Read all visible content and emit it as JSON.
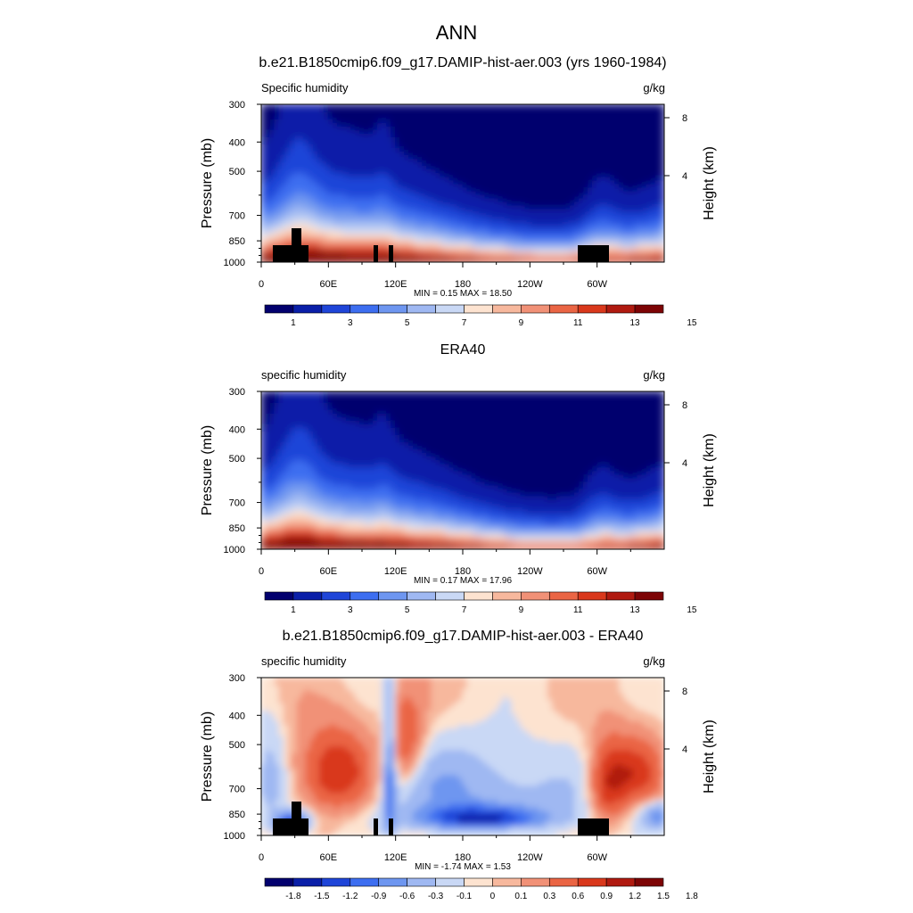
{
  "main_title": "ANN",
  "colormaps": {
    "abs": [
      "#02006e",
      "#0a1fa8",
      "#1f45d8",
      "#3d6ef0",
      "#6e96f0",
      "#9fb8f2",
      "#c9d8f5",
      "#fde3d0",
      "#f7b89d",
      "#f19177",
      "#ea6544",
      "#d9381c",
      "#b01a10",
      "#7d0405"
    ],
    "diff": [
      "#02006e",
      "#0a1fa8",
      "#1f45d8",
      "#3d6ef0",
      "#6e96f0",
      "#9fb8f2",
      "#c9d8f5",
      "#fde3d0",
      "#f7b89d",
      "#f19177",
      "#ea6544",
      "#d9381c",
      "#b01a10",
      "#7d0405"
    ]
  },
  "panels": [
    {
      "title": "b.e21.B1850cmip6.f09_g17.DAMIP-hist-aer.003 (yrs 1960-1984)",
      "left_label": "Specific humidity",
      "right_label": "g/kg",
      "y_label": "Pressure (mb)",
      "right_axis_label": "Height (km)",
      "stats": "MIN =   0.15  MAX =  18.50",
      "colorbar_labels": [
        "1",
        "3",
        "5",
        "7",
        "9",
        "11",
        "13",
        "15"
      ]
    },
    {
      "title": "ERA40",
      "left_label": "specific humidity",
      "right_label": "g/kg",
      "y_label": "Pressure (mb)",
      "right_axis_label": "Height (km)",
      "stats": "MIN =   0.17  MAX =  17.96",
      "colorbar_labels": [
        "1",
        "3",
        "5",
        "7",
        "9",
        "11",
        "13",
        "15"
      ]
    },
    {
      "title": "b.e21.B1850cmip6.f09_g17.DAMIP-hist-aer.003 - ERA40",
      "left_label": "specific humidity",
      "right_label": "g/kg",
      "y_label": "Pressure (mb)",
      "right_axis_label": "Height (km)",
      "stats": "MIN =  -1.74  MAX =   1.53",
      "colorbar_labels": [
        "-1.8",
        "-1.5",
        "-1.2",
        "-0.9",
        "-0.6",
        "-0.3",
        "-0.1",
        "0",
        "0.1",
        "0.3",
        "0.6",
        "0.9",
        "1.2",
        "1.5",
        "1.8"
      ]
    }
  ],
  "chart_data": [
    {
      "type": "heatmap",
      "title": "b.e21.B1850cmip6.f09_g17.DAMIP-hist-aer.003 (yrs 1960-1984)",
      "variable": "Specific humidity",
      "units": "g/kg",
      "ylabel": "Pressure (mb)",
      "y2label": "Height (km)",
      "x_ticks": [
        "0",
        "60E",
        "120E",
        "180",
        "120W",
        "60W"
      ],
      "x_tick_values": [
        0,
        60,
        120,
        180,
        240,
        300
      ],
      "xlim": [
        0,
        360
      ],
      "y_ticks": [
        300,
        400,
        500,
        700,
        850,
        1000
      ],
      "ylim": [
        1000,
        300
      ],
      "y2_ticks": [
        8,
        4
      ],
      "levels": [
        1,
        2,
        3,
        4,
        5,
        6,
        7,
        8,
        9,
        10,
        11,
        12,
        13,
        14,
        15
      ],
      "min": 0.15,
      "max": 18.5
    },
    {
      "type": "heatmap",
      "title": "ERA40",
      "variable": "specific humidity",
      "units": "g/kg",
      "ylabel": "Pressure (mb)",
      "y2label": "Height (km)",
      "x_ticks": [
        "0",
        "60E",
        "120E",
        "180",
        "120W",
        "60W"
      ],
      "x_tick_values": [
        0,
        60,
        120,
        180,
        240,
        300
      ],
      "xlim": [
        0,
        360
      ],
      "y_ticks": [
        300,
        400,
        500,
        700,
        850,
        1000
      ],
      "ylim": [
        1000,
        300
      ],
      "y2_ticks": [
        8,
        4
      ],
      "levels": [
        1,
        2,
        3,
        4,
        5,
        6,
        7,
        8,
        9,
        10,
        11,
        12,
        13,
        14,
        15
      ],
      "min": 0.17,
      "max": 17.96
    },
    {
      "type": "heatmap",
      "title": "b.e21.B1850cmip6.f09_g17.DAMIP-hist-aer.003 - ERA40",
      "variable": "specific humidity",
      "units": "g/kg",
      "ylabel": "Pressure (mb)",
      "y2label": "Height (km)",
      "x_ticks": [
        "0",
        "60E",
        "120E",
        "180",
        "120W",
        "60W"
      ],
      "x_tick_values": [
        0,
        60,
        120,
        180,
        240,
        300
      ],
      "xlim": [
        0,
        360
      ],
      "y_ticks": [
        300,
        400,
        500,
        700,
        850,
        1000
      ],
      "ylim": [
        1000,
        300
      ],
      "y2_ticks": [
        8,
        4
      ],
      "levels": [
        -1.8,
        -1.5,
        -1.2,
        -0.9,
        -0.6,
        -0.3,
        -0.1,
        0,
        0.1,
        0.3,
        0.6,
        0.9,
        1.2,
        1.5,
        1.8
      ],
      "min": -1.74,
      "max": 1.53
    }
  ]
}
